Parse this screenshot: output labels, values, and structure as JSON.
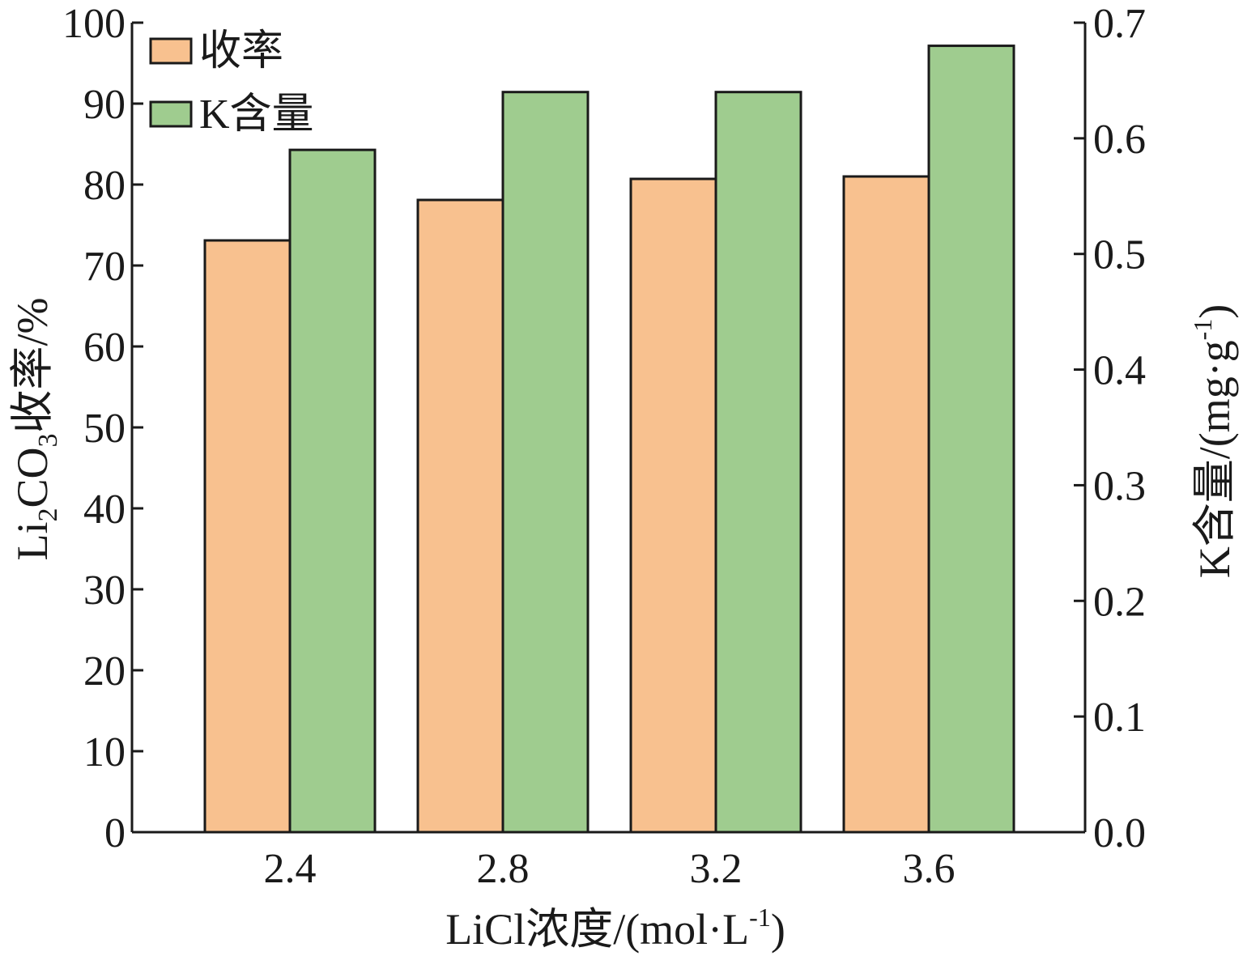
{
  "chart_data": {
    "type": "bar",
    "categories": [
      "2.4",
      "2.8",
      "3.2",
      "3.6"
    ],
    "series": [
      {
        "name": "收率",
        "axis": "left",
        "color": "#f8c18f",
        "values": [
          73.1,
          78.1,
          80.7,
          81.0
        ]
      },
      {
        "name": "K含量",
        "axis": "right",
        "color": "#9fcc8f",
        "values": [
          0.59,
          0.64,
          0.64,
          0.68
        ]
      }
    ],
    "xlabel": {
      "main": "LiCl浓度/(mol·L",
      "sup": "-1",
      "tail": ")"
    },
    "ylabel_left": {
      "a": "Li",
      "sub": "2",
      "b": "CO",
      "sub2": "3",
      "c": "收率/%"
    },
    "ylabel_right": {
      "main": "K含量/(mg·g",
      "sup": "-1",
      "tail": ")"
    },
    "ylim_left": [
      0,
      100
    ],
    "ylim_right": [
      0,
      0.7
    ],
    "yticks_left": [
      "0",
      "10",
      "20",
      "30",
      "40",
      "50",
      "60",
      "70",
      "80",
      "90",
      "100"
    ],
    "yticks_right": [
      "0.0",
      "0.1",
      "0.2",
      "0.3",
      "0.4",
      "0.5",
      "0.6",
      "0.7"
    ],
    "grid": false,
    "legend": "top-left"
  }
}
